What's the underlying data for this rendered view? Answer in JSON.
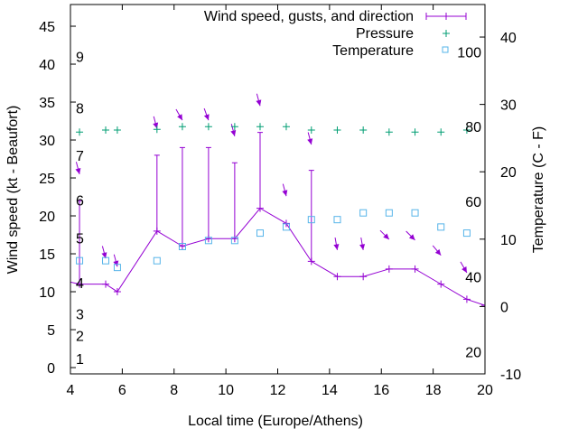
{
  "chart_data": {
    "type": "line",
    "xlabel": "Local time (Europe/Athens)",
    "ylabel": "Wind speed (kt - Beaufort)",
    "y2label": "Temperature (C - F)",
    "xlim": [
      4,
      20
    ],
    "ylim": [
      -0.83,
      47.86
    ],
    "y2lim": [
      -10,
      44.83
    ],
    "xticks": [
      4,
      6,
      8,
      10,
      12,
      14,
      16,
      18,
      20
    ],
    "yticks": [
      0,
      5,
      10,
      15,
      20,
      25,
      30,
      35,
      40,
      45
    ],
    "y2ticks": [
      -10,
      0,
      10,
      20,
      30,
      40
    ],
    "beaufort_labels": [
      {
        "label": "1",
        "kt": 1.2
      },
      {
        "label": "2",
        "kt": 4.2
      },
      {
        "label": "3",
        "kt": 7.1
      },
      {
        "label": "4",
        "kt": 11.2
      },
      {
        "label": "5",
        "kt": 17.1
      },
      {
        "label": "6",
        "kt": 22.1
      },
      {
        "label": "7",
        "kt": 28
      },
      {
        "label": "8",
        "kt": 34.2
      },
      {
        "label": "9",
        "kt": 41
      }
    ],
    "fahrenheit_labels": [
      {
        "label": "20",
        "c": -6.7
      },
      {
        "label": "40",
        "c": 4.4
      },
      {
        "label": "60",
        "c": 15.6
      },
      {
        "label": "80",
        "c": 26.7
      },
      {
        "label": "100",
        "c": 37.8
      }
    ],
    "legend_position": "top-right",
    "colors": {
      "wind": "#9400d3",
      "pressure": "#009e73",
      "temperature": "#56b4e9"
    },
    "series": [
      {
        "name": "Wind speed, gusts, and direction",
        "x": [
          3.7,
          4.35,
          5.36,
          5.81,
          7.34,
          8.32,
          9.33,
          10.34,
          11.32,
          12.33,
          13.3,
          14.3,
          15.3,
          16.3,
          17.3,
          18.3,
          19.3,
          20.0
        ],
        "speed": [
          11.5,
          11,
          11,
          10,
          18,
          16,
          17,
          17,
          21,
          19,
          14,
          12,
          12,
          13,
          13,
          11,
          9,
          8.2
        ],
        "gust": [
          null,
          22,
          null,
          null,
          28,
          29,
          29,
          27,
          31,
          null,
          26,
          null,
          null,
          null,
          null,
          null,
          null,
          null
        ],
        "direction_from_deg": [
          null,
          345,
          345,
          345,
          345,
          330,
          340,
          345,
          345,
          345,
          345,
          350,
          350,
          315,
          315,
          320,
          330,
          null
        ],
        "arrow_kt": [
          null,
          25.5,
          14.4,
          13.3,
          31.5,
          32.6,
          32.6,
          30.5,
          34.5,
          22.6,
          29.4,
          15.5,
          15.5,
          16.9,
          16.8,
          14.8,
          12.5,
          null
        ]
      },
      {
        "name": "Pressure",
        "x": [
          4.35,
          5.36,
          5.81,
          7.34,
          8.32,
          9.33,
          10.34,
          11.32,
          12.33,
          13.3,
          14.3,
          15.3,
          16.3,
          17.3,
          18.3,
          19.3
        ],
        "y2": [
          25.9,
          26.2,
          26.2,
          26.3,
          26.7,
          26.7,
          26.7,
          26.7,
          26.7,
          26.2,
          26.2,
          26.2,
          25.9,
          25.9,
          25.9,
          26.2
        ]
      },
      {
        "name": "Temperature",
        "x": [
          4.35,
          5.36,
          5.81,
          7.34,
          8.32,
          9.33,
          10.34,
          11.32,
          12.33,
          13.3,
          14.3,
          15.3,
          16.3,
          17.3,
          18.3,
          19.3
        ],
        "y2": [
          6.8,
          6.8,
          5.8,
          6.8,
          8.9,
          9.8,
          9.8,
          10.9,
          11.8,
          12.9,
          12.9,
          13.9,
          13.9,
          13.9,
          11.8,
          10.9
        ]
      }
    ]
  }
}
